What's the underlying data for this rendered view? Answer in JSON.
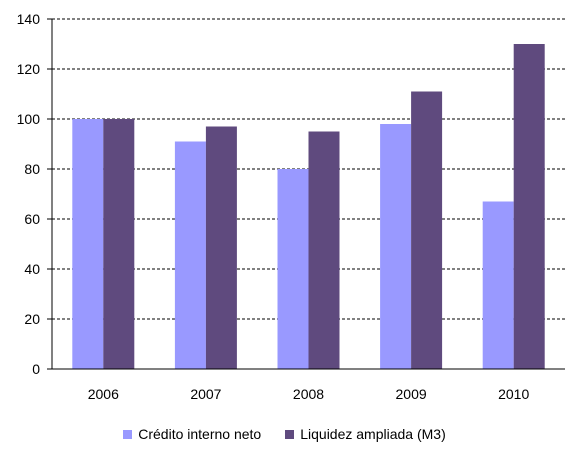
{
  "chart_data": {
    "type": "bar",
    "categories": [
      "2006",
      "2007",
      "2008",
      "2009",
      "2010"
    ],
    "series": [
      {
        "name": "Crédito interno neto",
        "values": [
          100,
          91,
          80,
          98,
          67
        ],
        "color": "#9999ff"
      },
      {
        "name": "Liquidez ampliada (M3)",
        "values": [
          100,
          97,
          95,
          111,
          130
        ],
        "color": "#5f4a7e"
      }
    ],
    "ylim": [
      0,
      140
    ],
    "yticks": [
      "0",
      "20",
      "40",
      "60",
      "80",
      "100",
      "120",
      "140"
    ],
    "grid": true,
    "legend": "bottom"
  }
}
